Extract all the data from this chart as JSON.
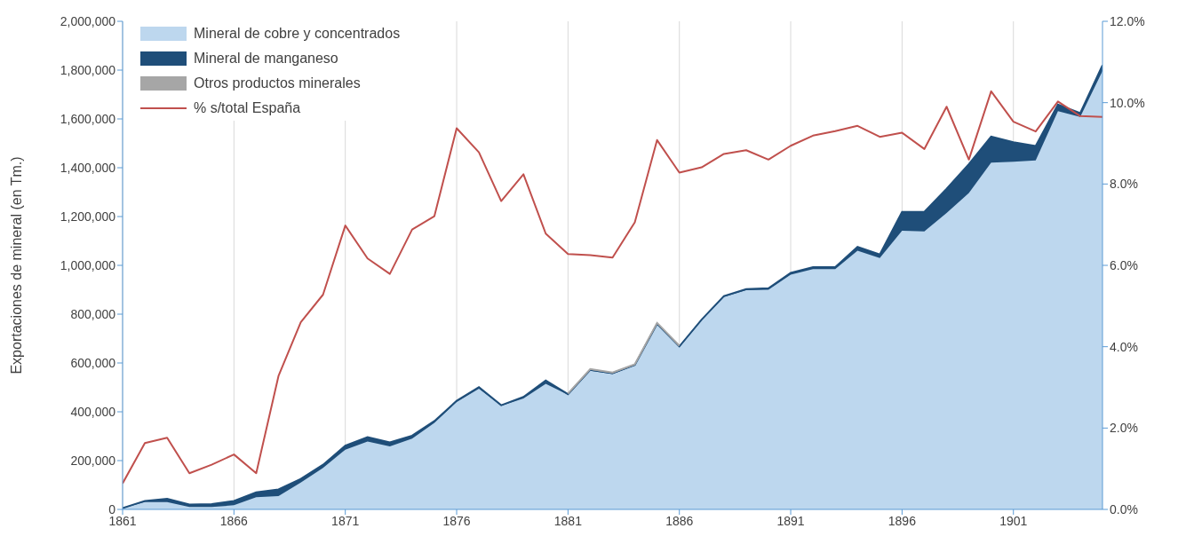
{
  "chart_data": {
    "type": "area",
    "stacked": true,
    "ylabel": "Exportaciones de mineral (en Tm.)",
    "x": [
      1861,
      1862,
      1863,
      1864,
      1865,
      1866,
      1867,
      1868,
      1869,
      1870,
      1871,
      1872,
      1873,
      1874,
      1875,
      1876,
      1877,
      1878,
      1879,
      1880,
      1881,
      1882,
      1883,
      1884,
      1885,
      1886,
      1887,
      1888,
      1889,
      1890,
      1891,
      1892,
      1893,
      1894,
      1895,
      1896,
      1897,
      1898,
      1899,
      1900,
      1901,
      1902,
      1903,
      1904,
      1905
    ],
    "series": [
      {
        "name": "Mineral de cobre y concentrados",
        "color": "#bdd7ee",
        "values": [
          5000,
          30000,
          30000,
          10000,
          10000,
          17000,
          50000,
          55000,
          110000,
          170000,
          245000,
          278000,
          258000,
          290000,
          355000,
          440000,
          495000,
          425000,
          455000,
          515000,
          470000,
          568000,
          555000,
          590000,
          758000,
          665000,
          775000,
          870000,
          898000,
          900000,
          962000,
          985000,
          985000,
          1060000,
          1030000,
          1142000,
          1139000,
          1215000,
          1296000,
          1421000,
          1425000,
          1430000,
          1632000,
          1608000,
          1796000
        ]
      },
      {
        "name": "Mineral de manganeso",
        "color": "#1f4e79",
        "values": [
          0,
          5000,
          14000,
          10000,
          12000,
          18000,
          20000,
          27000,
          15000,
          13000,
          16000,
          18000,
          17000,
          12000,
          7000,
          5000,
          6000,
          2000,
          6000,
          13000,
          2000,
          4000,
          3000,
          2000,
          3000,
          3000,
          3000,
          4000,
          5000,
          6000,
          7000,
          8000,
          8000,
          16000,
          15000,
          77000,
          80000,
          99000,
          119000,
          107000,
          80000,
          59000,
          27000,
          16000,
          24000
        ]
      },
      {
        "name": "Otros productos minerales",
        "color": "#a6a6a6",
        "values": [
          null,
          null,
          null,
          null,
          null,
          null,
          null,
          null,
          null,
          null,
          null,
          null,
          null,
          null,
          null,
          null,
          null,
          null,
          null,
          null,
          3000,
          3000,
          3000,
          3000,
          3000,
          3000,
          null,
          null,
          null,
          null,
          null,
          null,
          null,
          null,
          null,
          null,
          null,
          null,
          null,
          null,
          null,
          null,
          null,
          null,
          null
        ]
      },
      {
        "name": "% s/total España",
        "type": "line",
        "axis": "y2",
        "color": "#c0504d",
        "values": [
          0.64,
          1.63,
          1.76,
          0.89,
          1.1,
          1.35,
          0.89,
          3.28,
          4.6,
          5.28,
          6.98,
          6.17,
          5.79,
          6.88,
          7.21,
          9.37,
          8.78,
          7.58,
          8.24,
          6.78,
          6.28,
          6.25,
          6.19,
          7.06,
          9.08,
          8.28,
          8.41,
          8.74,
          8.83,
          8.6,
          8.94,
          9.19,
          9.3,
          9.43,
          9.16,
          9.26,
          8.86,
          9.9,
          8.6,
          10.28,
          9.53,
          9.29,
          10.03,
          9.67,
          9.65
        ]
      }
    ],
    "xlim": [
      1861,
      1905
    ],
    "xticks": [
      1861,
      1866,
      1871,
      1876,
      1881,
      1886,
      1891,
      1896,
      1901
    ],
    "ylim": [
      0,
      2000000
    ],
    "yticks": [
      {
        "value": 0,
        "label": "0"
      },
      {
        "value": 200000,
        "label": "200,000"
      },
      {
        "value": 400000,
        "label": "400,000"
      },
      {
        "value": 600000,
        "label": "600,000"
      },
      {
        "value": 800000,
        "label": "800,000"
      },
      {
        "value": 1000000,
        "label": "1,000,000"
      },
      {
        "value": 1200000,
        "label": "1,200,000"
      },
      {
        "value": 1400000,
        "label": "1,400,000"
      },
      {
        "value": 1600000,
        "label": "1,600,000"
      },
      {
        "value": 1800000,
        "label": "1,800,000"
      },
      {
        "value": 2000000,
        "label": "2,000,000"
      }
    ],
    "y2lim": [
      0,
      12
    ],
    "y2ticks": [
      {
        "value": 0,
        "label": "0.0%"
      },
      {
        "value": 2,
        "label": "2.0%"
      },
      {
        "value": 4,
        "label": "4.0%"
      },
      {
        "value": 6,
        "label": "6.0%"
      },
      {
        "value": 8,
        "label": "8.0%"
      },
      {
        "value": 10,
        "label": "10.0%"
      },
      {
        "value": 12,
        "label": "12.0%"
      }
    ],
    "grid": true,
    "legend": "top left",
    "marker": "none",
    "line_style": "solid"
  }
}
